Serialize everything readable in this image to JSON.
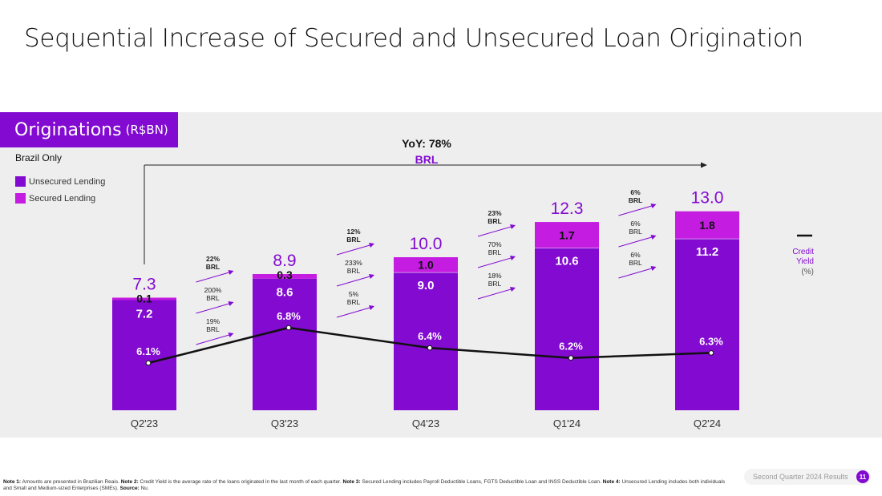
{
  "page": {
    "title": "Sequential Increase of Secured and Unsecured Loan Origination"
  },
  "badge": {
    "label": "Originations",
    "unit": "(R$BN)"
  },
  "scope_label": "Brazil Only",
  "legend": [
    {
      "name": "Unsecured Lending",
      "color": "#820ad1"
    },
    {
      "name": "Secured Lending",
      "color": "#c41ce0"
    }
  ],
  "yoy": {
    "label": "YoY: 78%",
    "sub": "BRL"
  },
  "credit_yield": {
    "line1": "Credit",
    "line2": "Yield",
    "line3": "(%)"
  },
  "chart_data": {
    "type": "bar",
    "stacked": true,
    "categories": [
      "Q2'23",
      "Q3'23",
      "Q4'23",
      "Q1'24",
      "Q2'24"
    ],
    "series": [
      {
        "name": "Unsecured Lending",
        "values": [
          7.2,
          8.6,
          9.0,
          10.6,
          11.2
        ],
        "labels": [
          "7.2",
          "8.6",
          "9.0",
          "10.6",
          "11.2"
        ]
      },
      {
        "name": "Secured Lending",
        "values": [
          0.1,
          0.3,
          1.0,
          1.7,
          1.8
        ],
        "labels": [
          "0.1",
          "0.3",
          "1.0",
          "1.7",
          "1.8"
        ]
      }
    ],
    "totals": [
      7.3,
      8.9,
      10.0,
      12.3,
      13.0
    ],
    "total_labels": [
      "7.3",
      "8.9",
      "10.0",
      "12.3",
      "13.0"
    ],
    "line": {
      "name": "Credit Yield",
      "values": [
        6.1,
        6.8,
        6.4,
        6.2,
        6.3
      ],
      "labels": [
        "6.1%",
        "6.8%",
        "6.4%",
        "6.2%",
        "6.3%"
      ]
    },
    "growth": [
      [
        {
          "pct": "22%",
          "unit": "BRL",
          "bold": true
        },
        {
          "pct": "200%",
          "unit": "BRL",
          "bold": false
        },
        {
          "pct": "19%",
          "unit": "BRL",
          "bold": false
        }
      ],
      [
        {
          "pct": "12%",
          "unit": "BRL",
          "bold": true
        },
        {
          "pct": "233%",
          "unit": "BRL",
          "bold": false
        },
        {
          "pct": "5%",
          "unit": "BRL",
          "bold": false
        }
      ],
      [
        {
          "pct": "23%",
          "unit": "BRL",
          "bold": true
        },
        {
          "pct": "70%",
          "unit": "BRL",
          "bold": false
        },
        {
          "pct": "18%",
          "unit": "BRL",
          "bold": false
        }
      ],
      [
        {
          "pct": "6%",
          "unit": "BRL",
          "bold": true
        },
        {
          "pct": "6%",
          "unit": "BRL",
          "bold": false
        },
        {
          "pct": "6%",
          "unit": "BRL",
          "bold": false
        }
      ]
    ]
  },
  "footer": {
    "n1_label": "Note 1:",
    "n1": "Amounts are presented in Brazilian Reais.",
    "n2_label": "Note 2:",
    "n2": "Credit Yield is the average rate of the loans originated in the last month of each quarter.",
    "n3_label": "Note 3:",
    "n3": "Secured Lending includes Payroll Deductible Loans, FGTS Deductible Loan and INSS Deductible Loan.",
    "n4_label": "Note 4:",
    "n4": "Unsecured Lending includes both individuals and Small and Medium-sized Enterprises (SMEs).",
    "src_label": "Source:",
    "src": "Nu."
  },
  "page_footer": {
    "label": "Second Quarter 2024 Results",
    "page_number": "11"
  },
  "colors": {
    "brand": "#820ad1",
    "secured": "#c41ce0",
    "panel": "#eeeeee"
  }
}
